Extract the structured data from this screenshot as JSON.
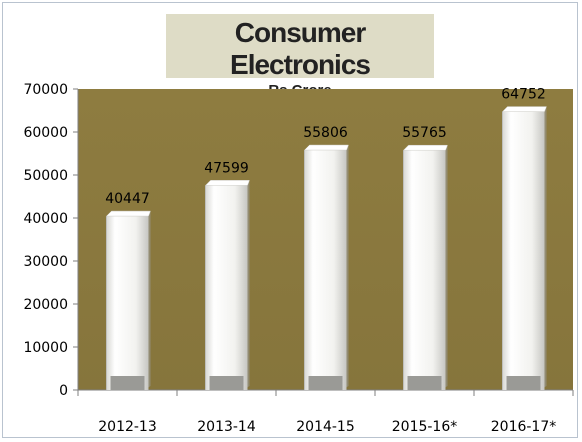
{
  "chart_data": {
    "type": "bar",
    "title": "Consumer Electronics",
    "subtitle": "Rs Crore",
    "categories": [
      "2012-13",
      "2013-14",
      "2014-15",
      "2015-16*",
      "2016-17*"
    ],
    "values": [
      40447,
      47599,
      55806,
      55765,
      64752
    ],
    "data_labels": [
      "40447",
      "47599",
      "55806",
      "55765",
      "64752"
    ],
    "ylim": [
      0,
      70000
    ],
    "yticks": [
      0,
      10000,
      20000,
      30000,
      40000,
      50000,
      60000,
      70000
    ],
    "ytick_labels": [
      "0",
      "10000",
      "20000",
      "30000",
      "40000",
      "50000",
      "60000",
      "70000"
    ],
    "xlabel": "",
    "ylabel": "",
    "grid": false,
    "legend": "none",
    "colors": {
      "plot_area": "#8c7a3f",
      "bar_face": "#f4f4f2",
      "bar_shade": "#9a9a96",
      "axis": "#7f7f7f"
    }
  }
}
